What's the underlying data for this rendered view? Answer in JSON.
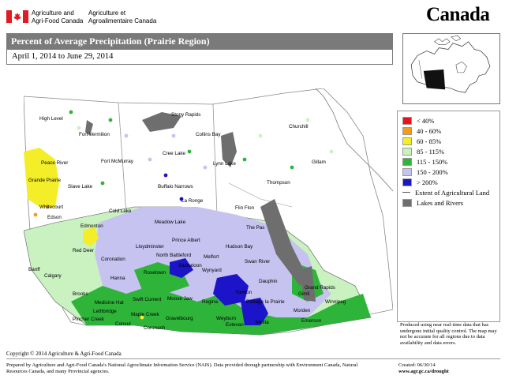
{
  "header": {
    "dept_en_line1": "Agriculture and",
    "dept_en_line2": "Agri-Food Canada",
    "dept_fr_line1": "Agriculture et",
    "dept_fr_line2": "Agroalimentaire Canada",
    "wordmark": "Canada"
  },
  "title": "Percent of Average Precipitation (Prairie Region)",
  "date_range": "April 1, 2014 to June 29, 2014",
  "legend": {
    "items": [
      {
        "label": "< 40%",
        "color": "#e8141b"
      },
      {
        "label": "40 - 60%",
        "color": "#f59b1b"
      },
      {
        "label": "60 - 85%",
        "color": "#f3ee28"
      },
      {
        "label": "85 - 115%",
        "color": "#c9f2c0"
      },
      {
        "label": "115 - 150%",
        "color": "#2fb43a"
      },
      {
        "label": "150 - 200%",
        "color": "#c6c3f0"
      },
      {
        "label": "> 200%",
        "color": "#1b14c8"
      }
    ],
    "agri_extent": "Extent of Agricultural Land",
    "lakes_rivers": "Lakes and Rivers",
    "lakes_color": "#6e6e6e"
  },
  "map": {
    "cities": [
      "High Level",
      "Fort Vermilion",
      "Peace River",
      "Grande Prairie",
      "Slave Lake",
      "Fort McMurray",
      "Whitecourt",
      "Edson",
      "Edmonton",
      "Cold Lake",
      "Red Deer",
      "Coronation",
      "Banff",
      "Calgary",
      "Hanna",
      "Brooks",
      "Medicine Hat",
      "Lethbridge",
      "Pincher Creek",
      "Stony Rapids",
      "Collins Bay",
      "Churchill",
      "Cree Lake",
      "Lynn Lake",
      "Gillam",
      "Buffalo Narrows",
      "La Ronge",
      "Thompson",
      "Flin Flon",
      "Meadow Lake",
      "Prince Albert",
      "The Pas",
      "Lloydminster",
      "North Battleford",
      "Melfort",
      "Hudson Bay",
      "Swan River",
      "Saskatoon",
      "Wynyard",
      "Dauphin",
      "Rosetown",
      "Grand Rapids",
      "Swift Current",
      "Moose Jaw",
      "Regina",
      "Yorkton",
      "Portage la Prairie",
      "Gimli",
      "Winnipeg",
      "Maple Creek",
      "Gravelbourg",
      "Weyburn",
      "Estevan",
      "Melita",
      "Morden",
      "Emerson",
      "Consul",
      "Coronach"
    ]
  },
  "disclaimer": "Produced using near real-time data that has undergone initial quality control. The map may not be accurate for all regions due to data availability and data errors.",
  "copyright": "Copyright © 2014 Agriculture & Agri-Food Canada",
  "footer": "Prepared by Agriculture and Agri-Food Canada's National Agroclimate Information Service (NAIS). Data provided through partnership with Environment Canada, Natural Resources Canada, and many Provincial agencies.",
  "created": "Created: 06/30/14",
  "site_url": "www.agr.gc.ca/drought"
}
